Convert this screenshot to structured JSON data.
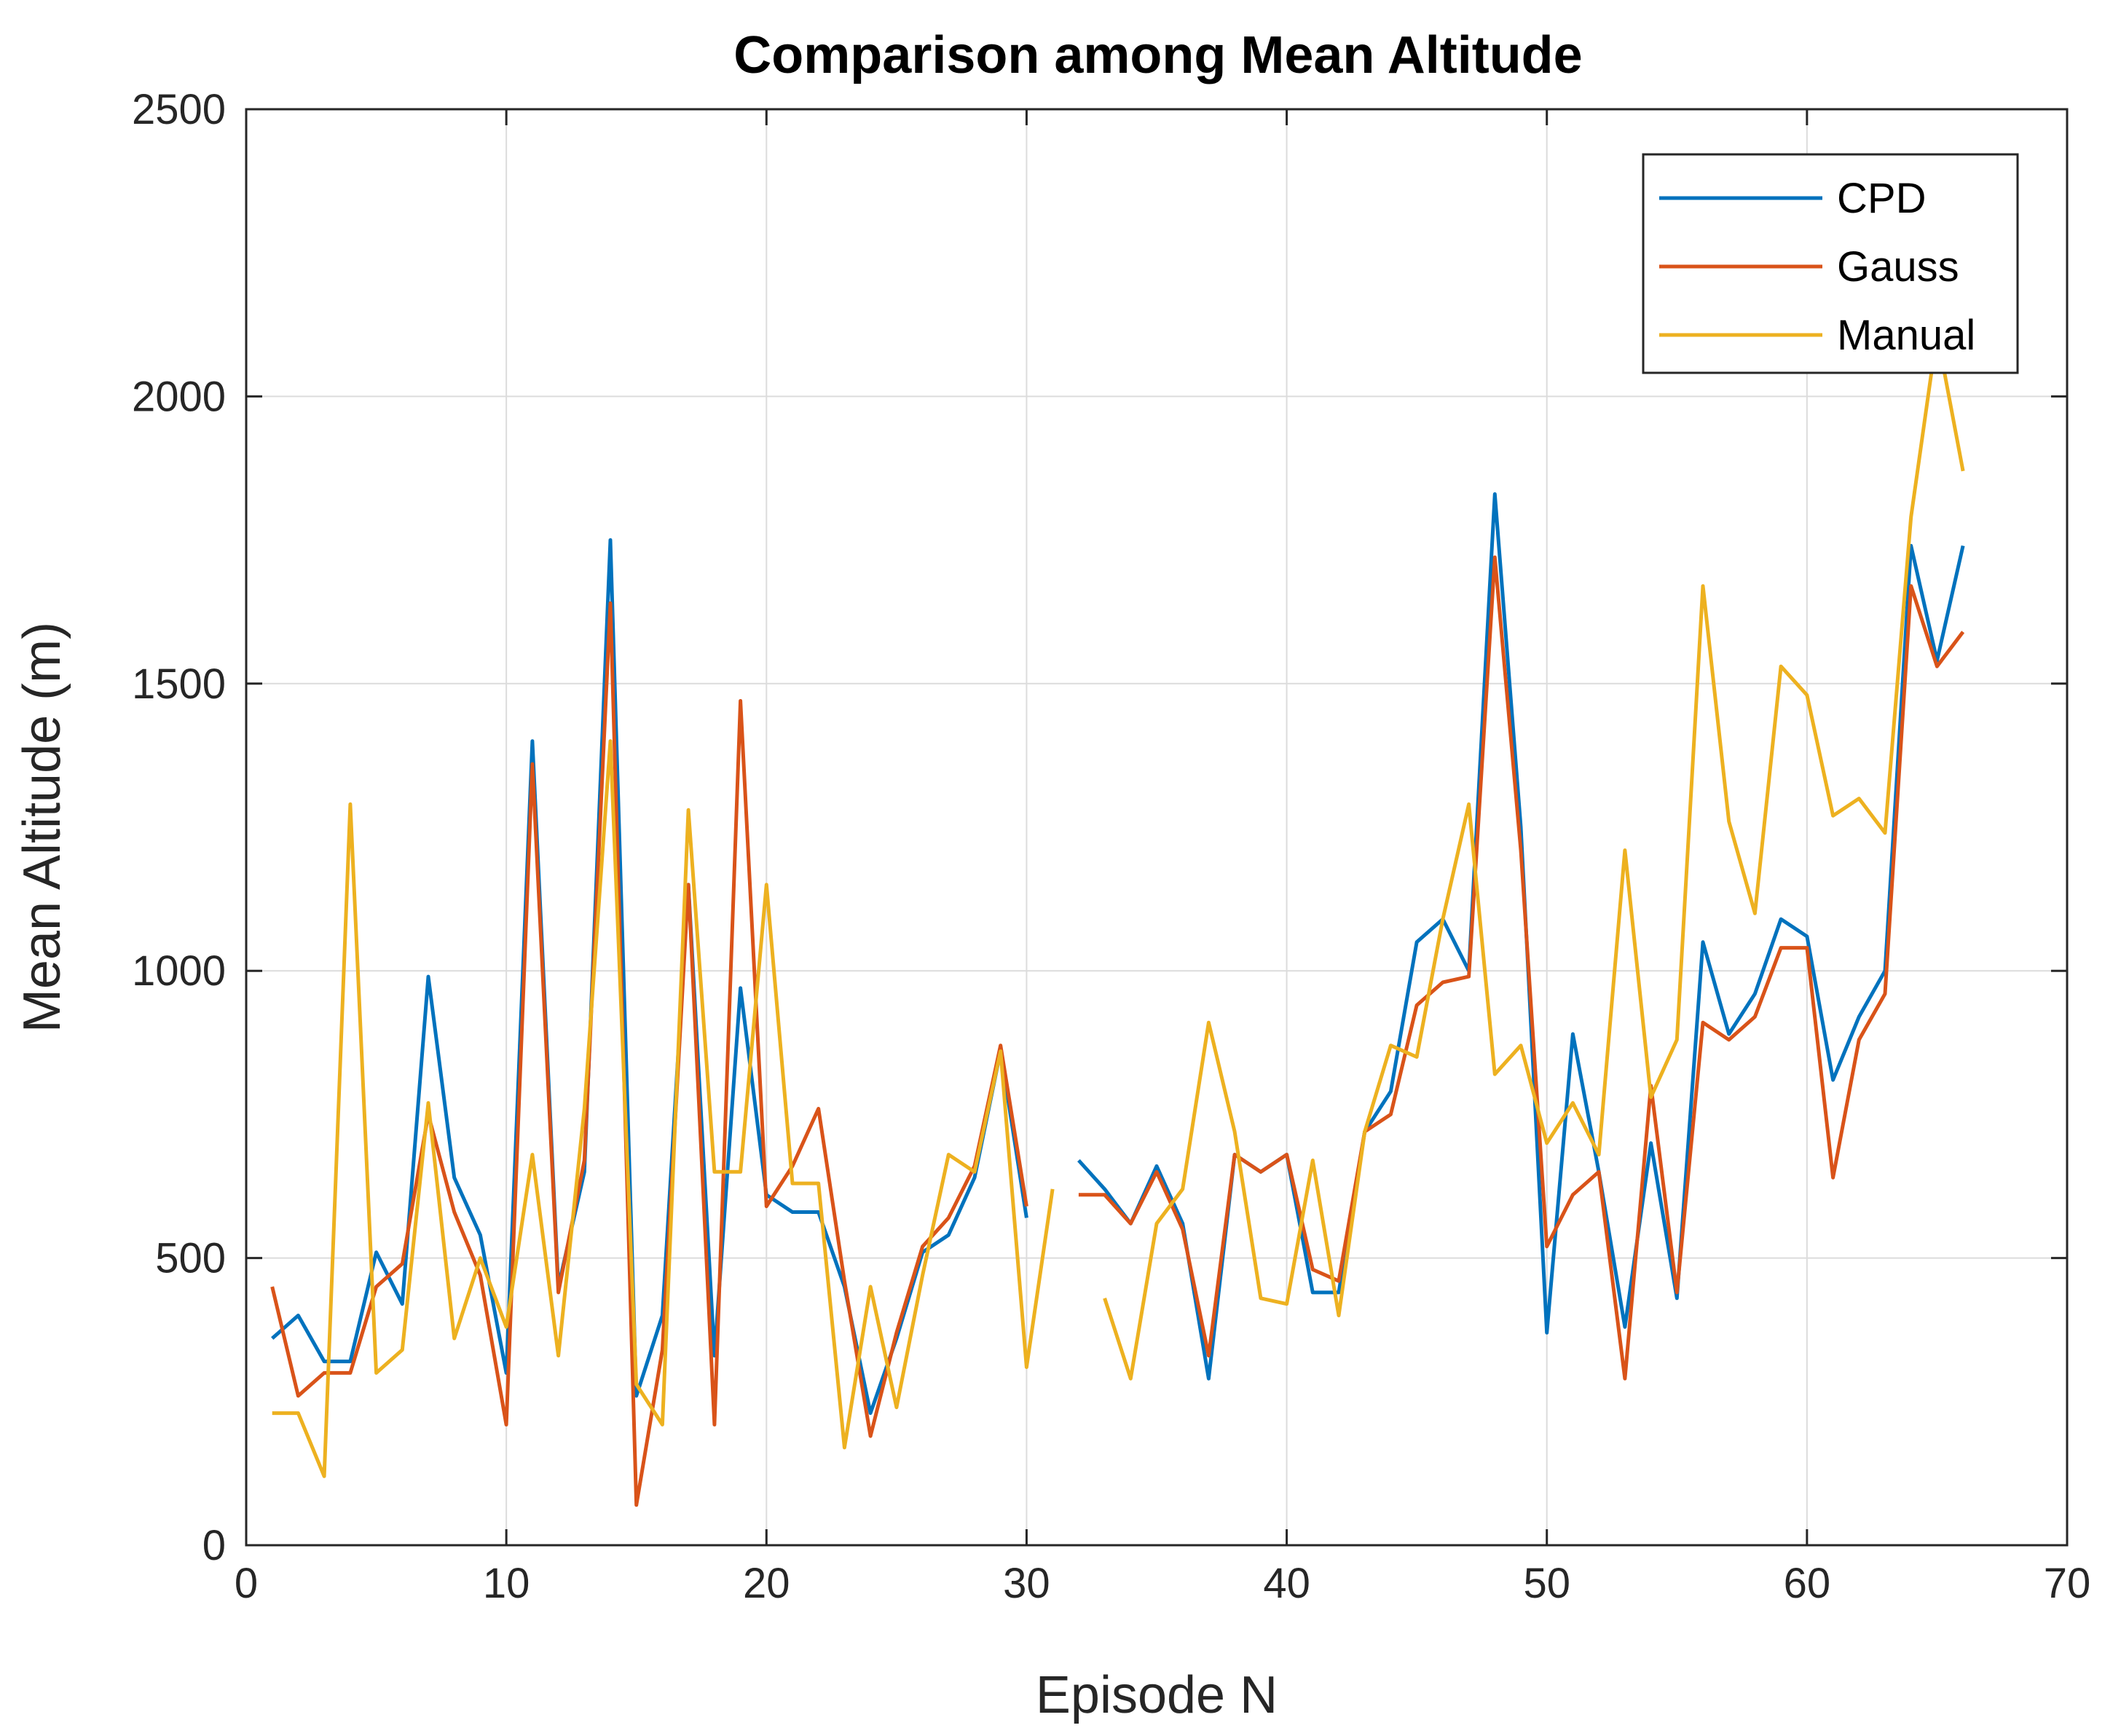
{
  "chart_data": {
    "type": "line",
    "title": "Comparison among Mean Altitude",
    "xlabel": "Episode N",
    "ylabel": "Mean Altitude (m)",
    "xlim": [
      0,
      70
    ],
    "ylim": [
      0,
      2500
    ],
    "xticks": [
      0,
      10,
      20,
      30,
      40,
      50,
      60,
      70
    ],
    "yticks": [
      0,
      500,
      1000,
      1500,
      2000,
      2500
    ],
    "grid": true,
    "legend_position": "top-right",
    "x": [
      1,
      2,
      3,
      4,
      5,
      6,
      7,
      8,
      9,
      10,
      11,
      12,
      13,
      14,
      15,
      16,
      17,
      18,
      19,
      20,
      21,
      22,
      23,
      24,
      25,
      26,
      27,
      28,
      29,
      30,
      31,
      32,
      33,
      34,
      35,
      36,
      37,
      38,
      39,
      40,
      41,
      42,
      43,
      44,
      45,
      46,
      47,
      48,
      49,
      50,
      51,
      52,
      53,
      54,
      55,
      56,
      57,
      58,
      59,
      60,
      61,
      62,
      63,
      64,
      65,
      66
    ],
    "series": [
      {
        "name": "CPD",
        "color": "#0072BD",
        "values": [
          360,
          400,
          320,
          320,
          510,
          420,
          990,
          640,
          540,
          300,
          1400,
          450,
          650,
          1750,
          260,
          400,
          1150,
          330,
          970,
          610,
          580,
          580,
          450,
          230,
          360,
          510,
          540,
          640,
          860,
          570,
          null,
          670,
          620,
          560,
          660,
          560,
          290,
          680,
          650,
          680,
          440,
          440,
          720,
          790,
          1050,
          1090,
          1000,
          1830,
          1250,
          370,
          890,
          650,
          380,
          700,
          430,
          1050,
          890,
          960,
          1090,
          1060,
          810,
          920,
          1000,
          1740,
          1540,
          1740
        ]
      },
      {
        "name": "Gauss",
        "color": "#D95319",
        "values": [
          450,
          260,
          300,
          300,
          450,
          490,
          750,
          580,
          470,
          210,
          1360,
          440,
          670,
          1640,
          70,
          340,
          1150,
          210,
          1470,
          590,
          660,
          760,
          460,
          190,
          370,
          520,
          570,
          660,
          870,
          590,
          null,
          610,
          610,
          560,
          650,
          550,
          330,
          680,
          650,
          680,
          480,
          460,
          720,
          750,
          940,
          980,
          990,
          1720,
          1210,
          520,
          610,
          650,
          290,
          800,
          440,
          910,
          880,
          920,
          1040,
          1040,
          640,
          880,
          960,
          1670,
          1530,
          1590
        ]
      },
      {
        "name": "Manual",
        "color": "#EDB120",
        "values": [
          230,
          230,
          120,
          1290,
          300,
          340,
          770,
          360,
          500,
          380,
          680,
          330,
          760,
          1400,
          280,
          210,
          1280,
          650,
          650,
          1150,
          630,
          630,
          170,
          450,
          240,
          470,
          680,
          650,
          860,
          310,
          620,
          null,
          430,
          290,
          560,
          620,
          910,
          720,
          430,
          420,
          670,
          400,
          720,
          870,
          850,
          1090,
          1290,
          820,
          870,
          700,
          770,
          680,
          1210,
          780,
          880,
          1670,
          1260,
          1100,
          1530,
          1480,
          1270,
          1300,
          1240,
          1790,
          2110,
          1870
        ]
      }
    ]
  }
}
